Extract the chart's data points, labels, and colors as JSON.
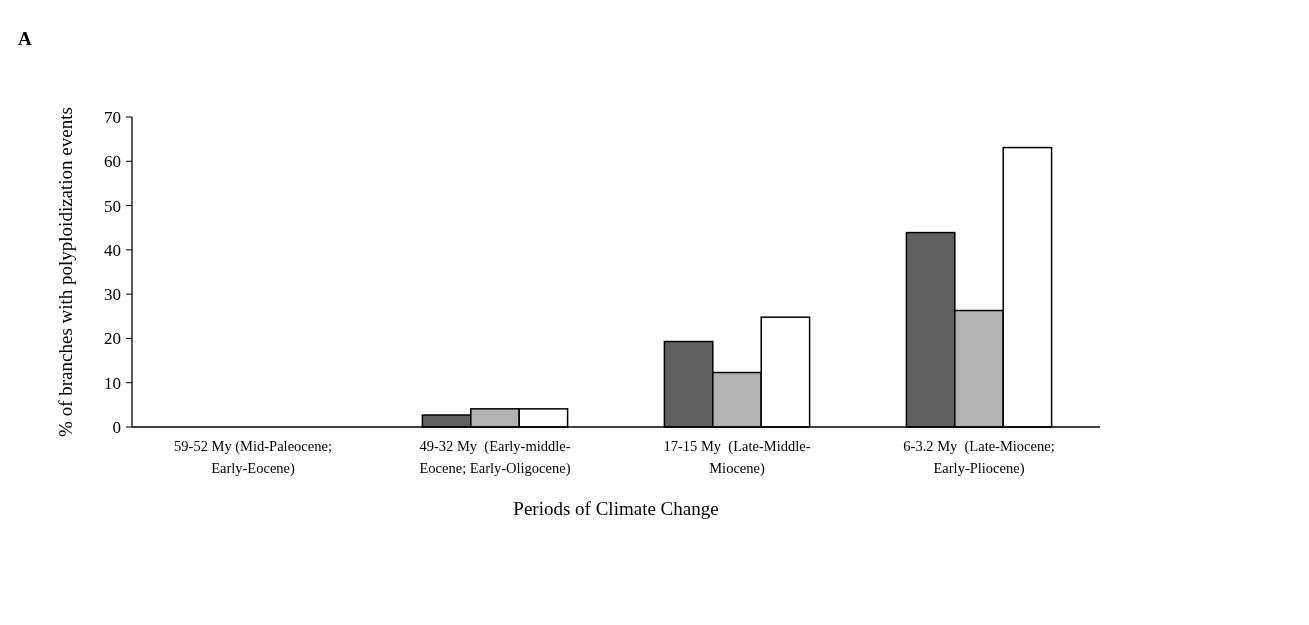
{
  "chart_data": {
    "type": "bar",
    "title": "A",
    "xlabel": "Periods of Climate Change",
    "ylabel": "% of branches with polyploidization events",
    "categories": [
      "59-52 My (Mid-Paleocene; Early-Eocene)",
      "49-32 My  (Early-middle-Eocene; Early-Oligocene)",
      "17-15 My  (Late-Middle-Miocene)",
      "6-3.2 My  (Late-Miocene; Early-Pliocene)"
    ],
    "series": [
      {
        "color": "#5f5f5f",
        "values": [
          0,
          2.7,
          19.3,
          43.9
        ]
      },
      {
        "color": "#b2b2b2",
        "values": [
          0,
          4.1,
          12.3,
          26.3
        ]
      },
      {
        "color": "#ffffff",
        "values": [
          0,
          4.1,
          24.8,
          63.1
        ]
      }
    ],
    "ylim": [
      0,
      70
    ],
    "yticks": [
      0,
      10,
      20,
      30,
      40,
      50,
      60,
      70
    ]
  }
}
